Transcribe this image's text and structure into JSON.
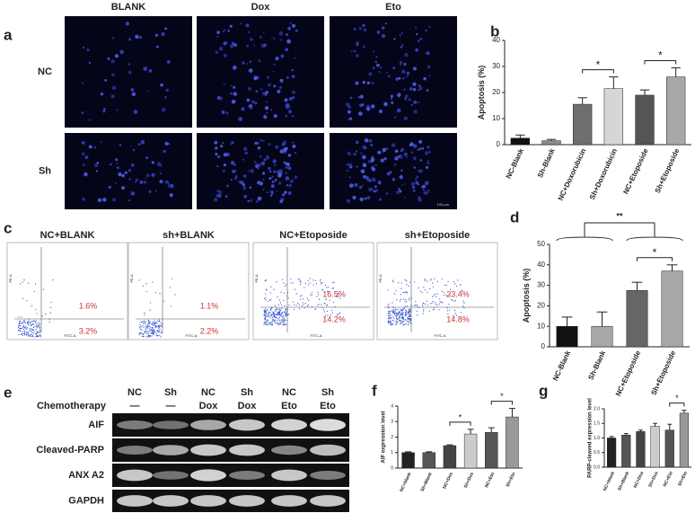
{
  "panel_labels": [
    "a",
    "b",
    "c",
    "d",
    "e",
    "f",
    "g"
  ],
  "microscopy": {
    "columns": [
      "BLANK",
      "Dox",
      "Eto"
    ],
    "rows": [
      "NC",
      "Sh"
    ],
    "scale_bar": "100 µm"
  },
  "flow": {
    "x_axis": "FITC-A",
    "y_axis": "PE-A",
    "plots": [
      {
        "title": "NC+BLANK",
        "upper": "1.6%",
        "lower": "3.2%"
      },
      {
        "title": "sh+BLANK",
        "upper": "1.1%",
        "lower": "2.2%"
      },
      {
        "title": "NC+Etoposide",
        "upper": "16.5%",
        "lower": "14.2%"
      },
      {
        "title": "sh+Etoposide",
        "upper": "23.4%",
        "lower": "14.8%"
      }
    ]
  },
  "blot": {
    "groups": [
      "NC",
      "Sh",
      "NC",
      "Sh",
      "NC",
      "Sh"
    ],
    "treatment_label": "Chemotherapy",
    "treatments": [
      "—",
      "—",
      "Dox",
      "Dox",
      "Eto",
      "Eto"
    ],
    "proteins": [
      "AIF",
      "Cleaved-PARP",
      "ANX A2",
      "GAPDH"
    ]
  },
  "chart_data": [
    {
      "type": "bar",
      "y_label": "Apoptosis (%)",
      "categories": [
        "NC-Blank",
        "Sh-Blank",
        "NC+Doxorubicin",
        "Sh+Doxorubicin",
        "NC+Etoposide",
        "Sh+Etoposide"
      ],
      "values": [
        2.5,
        1.5,
        15.5,
        21.5,
        19,
        26
      ],
      "errors": [
        1.2,
        0.5,
        2.5,
        4.5,
        2,
        3.5
      ],
      "colors": [
        "#111111",
        "#8a8a8a",
        "#6f6f6f",
        "#d6d6d6",
        "#555555",
        "#a8a8a8"
      ],
      "ylim": [
        0,
        40
      ],
      "yticks": [
        0,
        10,
        20,
        30,
        40
      ],
      "annotations": [
        {
          "text": "*",
          "between": [
            2,
            3
          ]
        },
        {
          "text": "*",
          "between": [
            4,
            5
          ]
        }
      ]
    },
    {
      "type": "bar",
      "y_label": "Apoptosis (%)",
      "categories": [
        "NC-Blank",
        "Sh-Blank",
        "NC+Etoposide",
        "Sh+Etoposide"
      ],
      "values": [
        10,
        10,
        27.5,
        37
      ],
      "errors": [
        4.5,
        7,
        4,
        3
      ],
      "colors": [
        "#111111",
        "#a8a8a8",
        "#666666",
        "#a8a8a8"
      ],
      "ylim": [
        0,
        50
      ],
      "yticks": [
        0,
        10,
        20,
        30,
        40,
        50
      ],
      "annotations": [
        {
          "text": "*",
          "between": [
            2,
            3
          ]
        },
        {
          "text": "**",
          "groups": [
            [
              0,
              1
            ],
            [
              2,
              3
            ]
          ]
        }
      ]
    },
    {
      "type": "bar",
      "y_label": "AIF expression level",
      "categories": [
        "NC+blank",
        "Sh+Blank",
        "NC+Dox",
        "Sh+Dox",
        "NC+Eto",
        "Sh+Eto"
      ],
      "values": [
        1.0,
        1.0,
        1.45,
        2.2,
        2.3,
        3.3
      ],
      "errors": [
        0.05,
        0.05,
        0.05,
        0.3,
        0.3,
        0.55
      ],
      "colors": [
        "#222222",
        "#555555",
        "#444444",
        "#cccccc",
        "#555555",
        "#999999"
      ],
      "ylim": [
        0,
        4
      ],
      "yticks": [
        0,
        1,
        2,
        3,
        4
      ],
      "annotations": [
        {
          "text": "*",
          "between": [
            2,
            3
          ]
        },
        {
          "text": "*",
          "between": [
            4,
            5
          ]
        }
      ]
    },
    {
      "type": "bar",
      "y_label": "PARP-cleaved expression level",
      "categories": [
        "NC+blank",
        "Sh+Blank",
        "NC+Dox",
        "Sh+Dox",
        "NC+Eto",
        "Sh+Eto"
      ],
      "values": [
        1.0,
        1.1,
        1.22,
        1.4,
        1.27,
        1.85
      ],
      "errors": [
        0.05,
        0.05,
        0.05,
        0.1,
        0.2,
        0.1
      ],
      "colors": [
        "#222222",
        "#555555",
        "#444444",
        "#cccccc",
        "#555555",
        "#999999"
      ],
      "ylim": [
        0,
        2
      ],
      "yticks": [
        {
          "value": 0,
          "label": "0.0"
        },
        0.5,
        {
          "value": 1,
          "label": "1.0"
        },
        1.5,
        {
          "value": 2,
          "label": "2.0"
        }
      ],
      "annotations": [
        {
          "text": "*",
          "between": [
            4,
            5
          ]
        }
      ]
    }
  ]
}
